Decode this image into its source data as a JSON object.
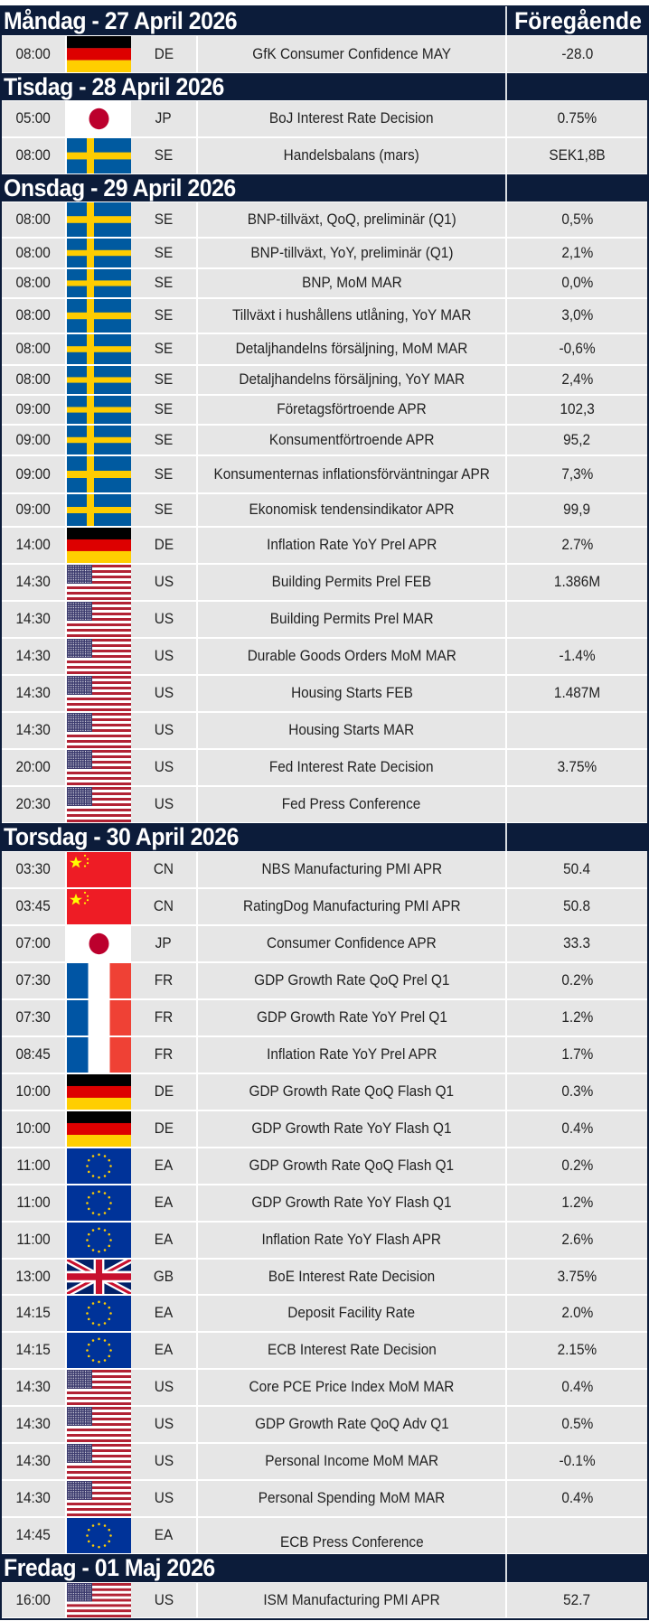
{
  "calendar": {
    "previous_header": "Föregående",
    "days": [
      {
        "label": "Måndag - 27 April 2026",
        "events": [
          {
            "time": "08:00",
            "flag": "flag-germany-icon",
            "country": "DE",
            "event": "GfK Consumer Confidence MAY",
            "previous": "-28.0"
          }
        ]
      },
      {
        "label": "Tisdag - 28 April 2026",
        "events": [
          {
            "time": "05:00",
            "flag": "flag-japan-icon",
            "country": "JP",
            "event": "BoJ Interest Rate Decision",
            "previous": "0.75%"
          },
          {
            "time": "08:00",
            "flag": "flag-sweden-icon",
            "country": "SE",
            "event": "Handelsbalans (mars)",
            "previous": "SEK1,8B"
          }
        ]
      },
      {
        "label": "Onsdag - 29 April 2026",
        "events": [
          {
            "time": "08:00",
            "flag": "flag-sweden-icon",
            "country": "SE",
            "event": "BNP-tillväxt, QoQ, preliminär (Q1)",
            "previous": "0,5%"
          },
          {
            "time": "08:00",
            "flag": "flag-sweden-icon",
            "country": "SE",
            "event": "BNP-tillväxt, YoY, preliminär (Q1)",
            "previous": "2,1%"
          },
          {
            "time": "08:00",
            "flag": "flag-sweden-icon",
            "country": "SE",
            "event": "BNP, MoM MAR",
            "previous": "0,0%"
          },
          {
            "time": "08:00",
            "flag": "flag-sweden-icon",
            "country": "SE",
            "event": "Tillväxt i hushållens utlåning, YoY MAR",
            "previous": "3,0%"
          },
          {
            "time": "08:00",
            "flag": "flag-sweden-icon",
            "country": "SE",
            "event": "Detaljhandelns försäljning, MoM MAR",
            "previous": "-0,6%"
          },
          {
            "time": "08:00",
            "flag": "flag-sweden-icon",
            "country": "SE",
            "event": "Detaljhandelns försäljning, YoY MAR",
            "previous": "2,4%"
          },
          {
            "time": "09:00",
            "flag": "flag-sweden-icon",
            "country": "SE",
            "event": "Företagsförtroende APR",
            "previous": "102,3"
          },
          {
            "time": "09:00",
            "flag": "flag-sweden-icon",
            "country": "SE",
            "event": "Konsumentförtroende APR",
            "previous": "95,2"
          },
          {
            "time": "09:00",
            "flag": "flag-sweden-icon",
            "country": "SE",
            "event": "Konsumenternas inflationsförväntningar APR",
            "previous": "7,3%"
          },
          {
            "time": "09:00",
            "flag": "flag-sweden-icon",
            "country": "SE",
            "event": "Ekonomisk tendensindikator APR",
            "previous": "99,9"
          },
          {
            "time": "14:00",
            "flag": "flag-germany-icon",
            "country": "DE",
            "event": "Inflation Rate YoY Prel APR",
            "previous": "2.7%"
          },
          {
            "time": "14:30",
            "flag": "flag-usa-icon",
            "country": "US",
            "event": "Building Permits Prel FEB",
            "previous": "1.386M"
          },
          {
            "time": "14:30",
            "flag": "flag-usa-icon",
            "country": "US",
            "event": "Building Permits Prel MAR",
            "previous": ""
          },
          {
            "time": "14:30",
            "flag": "flag-usa-icon",
            "country": "US",
            "event": "Durable Goods Orders MoM MAR",
            "previous": "-1.4%"
          },
          {
            "time": "14:30",
            "flag": "flag-usa-icon",
            "country": "US",
            "event": "Housing Starts FEB",
            "previous": "1.487M"
          },
          {
            "time": "14:30",
            "flag": "flag-usa-icon",
            "country": "US",
            "event": "Housing Starts MAR",
            "previous": ""
          },
          {
            "time": "20:00",
            "flag": "flag-usa-icon",
            "country": "US",
            "event": "Fed Interest Rate Decision",
            "previous": "3.75%"
          },
          {
            "time": "20:30",
            "flag": "flag-usa-icon",
            "country": "US",
            "event": "Fed Press Conference",
            "previous": ""
          }
        ]
      },
      {
        "label": "Torsdag - 30 April 2026",
        "events": [
          {
            "time": "03:30",
            "flag": "flag-china-icon",
            "country": "CN",
            "event": "NBS Manufacturing PMI APR",
            "previous": "50.4"
          },
          {
            "time": "03:45",
            "flag": "flag-china-icon",
            "country": "CN",
            "event": "RatingDog Manufacturing PMI APR",
            "previous": "50.8"
          },
          {
            "time": "07:00",
            "flag": "flag-japan-icon",
            "country": "JP",
            "event": "Consumer Confidence APR",
            "previous": "33.3"
          },
          {
            "time": "07:30",
            "flag": "flag-france-icon",
            "country": "FR",
            "event": "GDP Growth Rate QoQ Prel Q1",
            "previous": "0.2%"
          },
          {
            "time": "07:30",
            "flag": "flag-france-icon",
            "country": "FR",
            "event": "GDP Growth Rate YoY Prel Q1",
            "previous": "1.2%"
          },
          {
            "time": "08:45",
            "flag": "flag-france-icon",
            "country": "FR",
            "event": "Inflation Rate YoY Prel APR",
            "previous": "1.7%"
          },
          {
            "time": "10:00",
            "flag": "flag-germany-icon",
            "country": "DE",
            "event": "GDP Growth Rate QoQ Flash Q1",
            "previous": "0.3%"
          },
          {
            "time": "10:00",
            "flag": "flag-germany-icon",
            "country": "DE",
            "event": "GDP Growth Rate YoY Flash Q1",
            "previous": "0.4%"
          },
          {
            "time": "11:00",
            "flag": "flag-eu-icon",
            "country": "EA",
            "event": "GDP Growth Rate QoQ Flash Q1",
            "previous": "0.2%"
          },
          {
            "time": "11:00",
            "flag": "flag-eu-icon",
            "country": "EA",
            "event": "GDP Growth Rate YoY Flash Q1",
            "previous": "1.2%"
          },
          {
            "time": "11:00",
            "flag": "flag-eu-icon",
            "country": "EA",
            "event": "Inflation Rate YoY Flash APR",
            "previous": "2.6%"
          },
          {
            "time": "13:00",
            "flag": "flag-uk-icon",
            "country": "GB",
            "event": "BoE Interest Rate Decision",
            "previous": "3.75%"
          },
          {
            "time": "14:15",
            "flag": "flag-eu-icon",
            "country": "EA",
            "event": "Deposit Facility Rate",
            "previous": "2.0%"
          },
          {
            "time": "14:15",
            "flag": "flag-eu-icon",
            "country": "EA",
            "event": "ECB Interest Rate Decision",
            "previous": "2.15%"
          },
          {
            "time": "14:30",
            "flag": "flag-usa-icon",
            "country": "US",
            "event": "Core PCE Price Index MoM MAR",
            "previous": "0.4%"
          },
          {
            "time": "14:30",
            "flag": "flag-usa-icon",
            "country": "US",
            "event": "GDP Growth Rate QoQ Adv Q1",
            "previous": "0.5%"
          },
          {
            "time": "14:30",
            "flag": "flag-usa-icon",
            "country": "US",
            "event": "Personal Income MoM MAR",
            "previous": "-0.1%"
          },
          {
            "time": "14:30",
            "flag": "flag-usa-icon",
            "country": "US",
            "event": "Personal Spending MoM MAR",
            "previous": "0.4%"
          },
          {
            "time": "14:45",
            "flag": "flag-eu-icon",
            "country": "EA",
            "event": "ECB Press Conference",
            "previous": ""
          }
        ]
      },
      {
        "label": "Fredag - 01 Maj 2026",
        "events": [
          {
            "time": "16:00",
            "flag": "flag-usa-icon",
            "country": "US",
            "event": "ISM Manufacturing PMI APR",
            "previous": "52.7"
          }
        ]
      }
    ]
  },
  "colors": {
    "header_bg": "#0c1c3a",
    "cell_bg": "#e6e6e6",
    "text": "#222222"
  }
}
